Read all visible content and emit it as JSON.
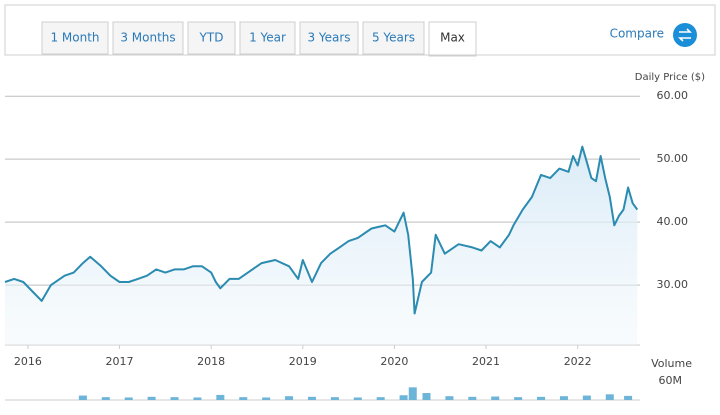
{
  "ui": {
    "tabs": [
      "1 Month",
      "3 Months",
      "YTD",
      "1 Year",
      "3 Years",
      "5 Years",
      "Max"
    ],
    "selected_tab": "Max",
    "compare": "Compare"
  },
  "chart_data": [
    {
      "type": "line",
      "y_label": "Daily Price ($)",
      "x": [
        2015.75,
        2015.85,
        2015.95,
        2016.05,
        2016.15,
        2016.25,
        2016.4,
        2016.5,
        2016.6,
        2016.68,
        2016.8,
        2016.9,
        2017.0,
        2017.1,
        2017.2,
        2017.3,
        2017.4,
        2017.5,
        2017.6,
        2017.7,
        2017.8,
        2017.9,
        2018.0,
        2018.05,
        2018.1,
        2018.2,
        2018.3,
        2018.45,
        2018.55,
        2018.7,
        2018.85,
        2018.95,
        2019.0,
        2019.1,
        2019.2,
        2019.3,
        2019.4,
        2019.5,
        2019.6,
        2019.75,
        2019.9,
        2020.0,
        2020.1,
        2020.15,
        2020.2,
        2020.22,
        2020.3,
        2020.4,
        2020.45,
        2020.55,
        2020.7,
        2020.85,
        2020.95,
        2021.05,
        2021.15,
        2021.25,
        2021.3,
        2021.4,
        2021.5,
        2021.6,
        2021.7,
        2021.8,
        2021.9,
        2021.95,
        2022.0,
        2022.05,
        2022.1,
        2022.15,
        2022.2,
        2022.25,
        2022.3,
        2022.35,
        2022.4,
        2022.45,
        2022.5,
        2022.55,
        2022.6,
        2022.65
      ],
      "series": [
        {
          "name": "Price",
          "color": "#2b8bb0",
          "values": [
            30.5,
            31,
            30.5,
            29,
            27.5,
            30,
            31.5,
            32,
            33.5,
            34.5,
            33,
            31.5,
            30.5,
            30.5,
            31,
            31.5,
            32.5,
            32,
            32.5,
            32.5,
            33,
            33,
            32,
            30.5,
            29.5,
            31,
            31,
            32.5,
            33.5,
            34,
            33,
            31,
            34,
            30.5,
            33.5,
            35,
            36,
            37,
            37.5,
            39,
            39.5,
            38.5,
            41.5,
            38,
            31,
            25.5,
            30.5,
            32,
            38,
            35,
            36.5,
            36,
            35.5,
            37,
            36,
            38,
            39.5,
            42,
            44,
            47.5,
            47,
            48.5,
            48,
            50.5,
            49,
            52,
            49.5,
            47,
            46.5,
            50.5,
            47,
            44,
            39.5,
            41,
            42,
            45.5,
            43,
            42
          ]
        }
      ],
      "xlim": [
        2015.75,
        2022.68
      ],
      "ylim": [
        20.5,
        64
      ],
      "xticks": [
        2016,
        2017,
        2018,
        2019,
        2020,
        2021,
        2022
      ],
      "yticks": [
        {
          "value": 30,
          "label": "30.00"
        },
        {
          "value": 40,
          "label": "40.00"
        },
        {
          "value": 50,
          "label": "50.00"
        },
        {
          "value": 60,
          "label": "60.00"
        }
      ],
      "grid": true
    },
    {
      "type": "bar",
      "y_label": "Volume",
      "x": [
        2016.6,
        2016.85,
        2017.1,
        2017.35,
        2017.6,
        2017.85,
        2018.1,
        2018.35,
        2018.6,
        2018.85,
        2019.1,
        2019.35,
        2019.6,
        2019.85,
        2020.1,
        2020.2,
        2020.35,
        2020.6,
        2020.85,
        2021.1,
        2021.35,
        2021.6,
        2021.85,
        2022.1,
        2022.35,
        2022.55
      ],
      "values": [
        14000000,
        9000000,
        8000000,
        10000000,
        9000000,
        8000000,
        16000000,
        9000000,
        8000000,
        12000000,
        10000000,
        9000000,
        8000000,
        9000000,
        15000000,
        40000000,
        22000000,
        12000000,
        10000000,
        11000000,
        9000000,
        10000000,
        12000000,
        14000000,
        18000000,
        13000000
      ],
      "color": "#6cb4d8",
      "ylim": [
        0,
        60000000
      ],
      "yticks": [
        {
          "value": 60000000,
          "label": "60M"
        }
      ]
    }
  ]
}
